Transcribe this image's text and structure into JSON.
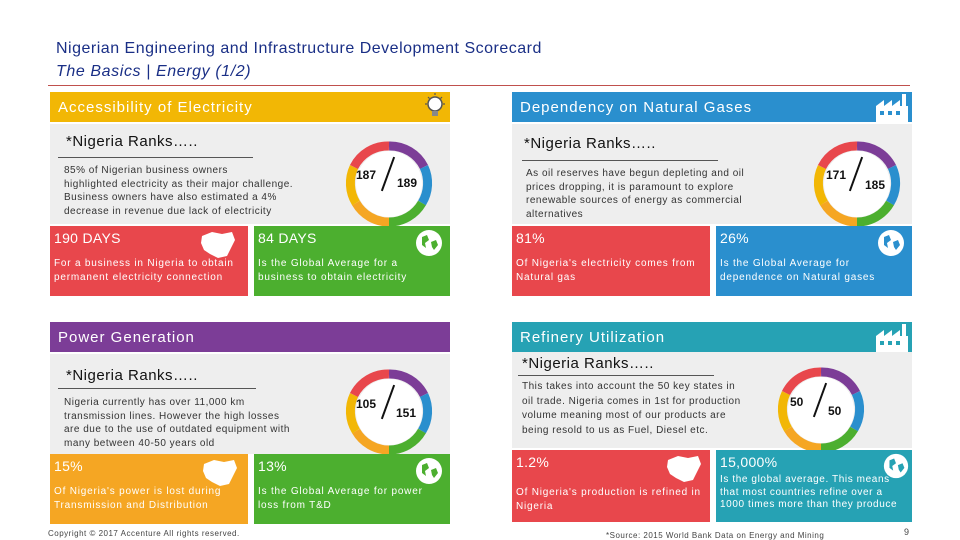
{
  "header": {
    "title": "Nigerian Engineering and Infrastructure Development Scorecard",
    "subtitle": "The Basics | Energy (1/2)"
  },
  "sections": {
    "accessibility": {
      "heading": "Accessibility of Electricity",
      "rank_label": "*Nigeria Ranks…..",
      "desc_lines": [
        "85% of Nigerian business owners",
        "highlighted electricity as their major challenge.",
        "Business owners have also estimated a 4%",
        "decrease in revenue due lack of electricity"
      ],
      "rank_a": "187",
      "rank_b": "189",
      "stat1_big": "190 DAYS",
      "stat1_small": "For a business in Nigeria to obtain permanent electricity connection",
      "stat2_big": "84 DAYS",
      "stat2_small": "Is the Global Average for a business to obtain electricity"
    },
    "dependency": {
      "heading": "Dependency on Natural Gases",
      "rank_label": "*Nigeria Ranks…..",
      "desc_lines": [
        "As oil reserves have begun depleting and oil",
        "prices dropping, it is paramount to explore",
        "renewable sources of energy as commercial",
        "alternatives"
      ],
      "rank_a": "171",
      "rank_b": "185",
      "stat1_big": "81%",
      "stat1_small": "Of Nigeria's electricity comes from Natural gas",
      "stat2_big": "26%",
      "stat2_small": "Is the Global Average for dependence on Natural gases"
    },
    "power": {
      "heading": "Power Generation",
      "rank_label": "*Nigeria Ranks…..",
      "desc_lines": [
        "Nigeria currently has over 11,000 km",
        "transmission lines. However the high losses",
        "are due to the use of outdated equipment with",
        "many between 40-50 years old"
      ],
      "rank_a": "105",
      "rank_b": "151",
      "stat1_big": "15%",
      "stat1_small": "Of Nigeria's power is lost during Transmission and Distribution",
      "stat2_big": "13%",
      "stat2_small": "Is the Global Average for power loss from T&D"
    },
    "refinery": {
      "heading": "Refinery Utilization",
      "rank_label": "*Nigeria Ranks…..",
      "desc_lines": [
        "This takes into account the 50 key states in",
        "oil trade. Nigeria comes in 1st for production",
        "volume meaning most of our products are",
        "being resold to us as Fuel, Diesel etc."
      ],
      "rank_a": "50",
      "rank_b": "50",
      "stat1_big": "1.2%",
      "stat1_small": "Of Nigeria's production is refined in Nigeria",
      "stat2_big": "15,000%",
      "stat2_small": "Is the global average. This means that most countries refine over a 1000 times more than they produce"
    }
  },
  "footer": {
    "copyright": "Copyright © 2017 Accenture All rights reserved.",
    "source": "*Source: 2015 World Bank Data on Energy and Mining",
    "page_number": "9"
  },
  "colors": {
    "title": "#1a2f86",
    "yellow": "#f2b705",
    "blue": "#2a8fce",
    "purple": "#7c3d97",
    "teal": "#26a2b4",
    "red": "#e8474c",
    "green": "#4caf2f",
    "orange": "#f5a623"
  },
  "icons": {
    "accessibility": "lightbulb-icon",
    "dependency": "factory-icon",
    "refinery": "factory-icon",
    "map": "nigeria-map-icon",
    "globe": "globe-icon"
  }
}
